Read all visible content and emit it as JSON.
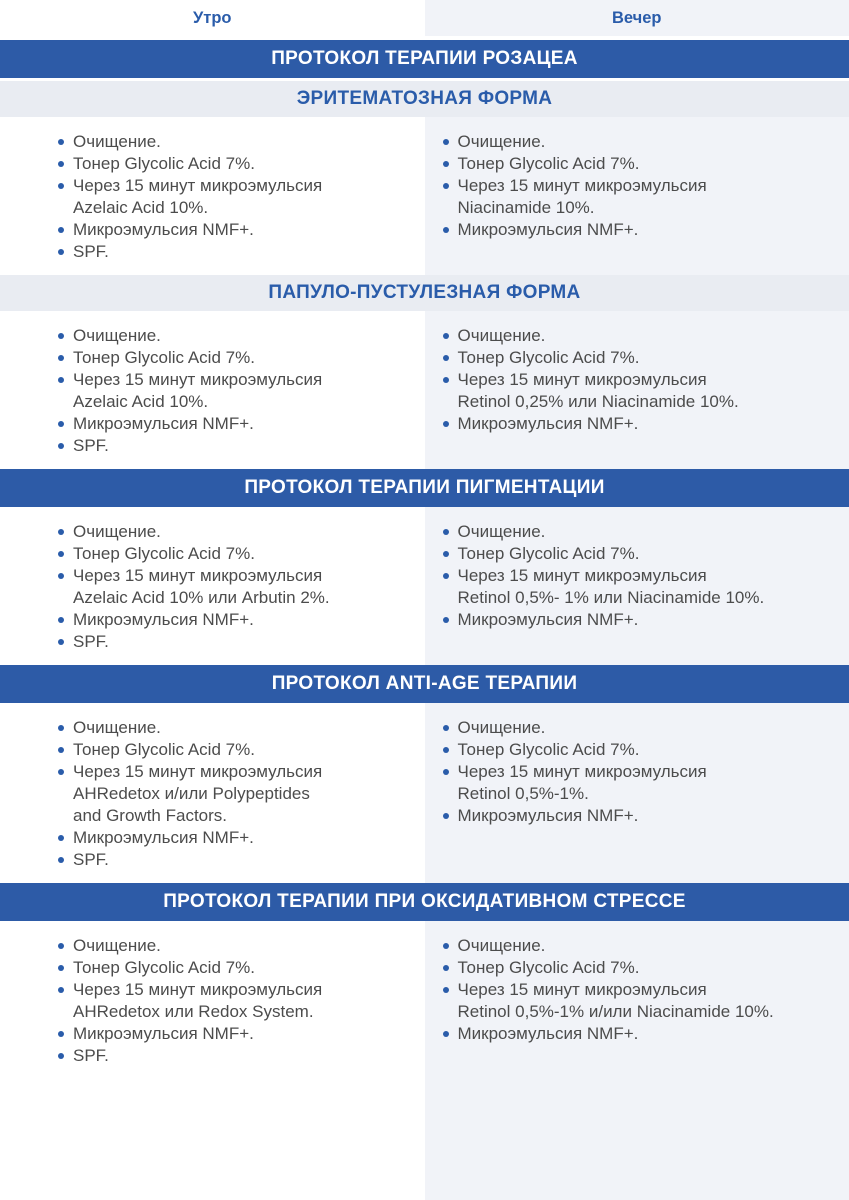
{
  "header": {
    "morning": "Утро",
    "evening": "Вечер"
  },
  "colors": {
    "banner_blue": "#2d5ba7",
    "accent_blue": "#2a5caa",
    "light_banner_bg": "#e9ecf2",
    "evening_column_bg": "#f1f3f8",
    "body_text": "#4c4c4c"
  },
  "blocks": [
    {
      "kind": "banner-dark",
      "text": "ПРОТОКОЛ ТЕРАПИИ РОЗАЦЕА"
    },
    {
      "kind": "banner-light",
      "text": "ЭРИТЕМАТОЗНАЯ ФОРМА"
    },
    {
      "kind": "lists",
      "morning": [
        "Очищение.",
        "Тонер Glycolic Acid 7%.",
        "Через 15 минут микроэмульсия\nAzelaic Acid 10%.",
        "Микроэмульсия NMF+.",
        "SPF."
      ],
      "evening": [
        "Очищение.",
        "Тонер Glycolic Acid 7%.",
        "Через 15 минут микроэмульсия\nNiacinamide 10%.",
        "Микроэмульсия NMF+."
      ]
    },
    {
      "kind": "banner-light",
      "text": "ПАПУЛО-ПУСТУЛЕЗНАЯ ФОРМА"
    },
    {
      "kind": "lists",
      "morning": [
        "Очищение.",
        "Тонер Glycolic Acid 7%.",
        "Через 15 минут микроэмульсия\nAzelaic Acid 10%.",
        "Микроэмульсия NMF+.",
        "SPF."
      ],
      "evening": [
        "Очищение.",
        "Тонер Glycolic Acid 7%.",
        "Через 15 минут микроэмульсия\nRetinol 0,25% или Niacinamide 10%.",
        "Микроэмульсия NMF+."
      ]
    },
    {
      "kind": "banner-dark",
      "text": "ПРОТОКОЛ ТЕРАПИИ ПИГМЕНТАЦИИ"
    },
    {
      "kind": "lists",
      "morning": [
        "Очищение.",
        "Тонер Glycolic Acid 7%.",
        "Через 15 минут микроэмульсия\nAzelaic Acid 10% или Arbutin 2%.",
        "Микроэмульсия NMF+.",
        "SPF."
      ],
      "evening": [
        "Очищение.",
        "Тонер Glycolic Acid 7%.",
        "Через 15 минут микроэмульсия\nRetinol 0,5%- 1% или Niacinamide 10%.",
        "Микроэмульсия NMF+."
      ]
    },
    {
      "kind": "banner-dark",
      "text": "ПРОТОКОЛ ANTI-AGE ТЕРАПИИ"
    },
    {
      "kind": "lists",
      "morning": [
        "Очищение.",
        "Тонер Glycolic Acid 7%.",
        "Через 15 минут микроэмульсия\nAHRedetox и/или Polypeptides\nand Growth Factors.",
        "Микроэмульсия NMF+.",
        "SPF."
      ],
      "evening": [
        "Очищение.",
        "Тонер Glycolic Acid 7%.",
        "Через 15 минут микроэмульсия\nRetinol 0,5%-1%.",
        "Микроэмульсия NMF+."
      ]
    },
    {
      "kind": "banner-dark",
      "text": "ПРОТОКОЛ ТЕРАПИИ ПРИ ОКСИДАТИВНОМ СТРЕССЕ"
    },
    {
      "kind": "lists",
      "morning": [
        "Очищение.",
        "Тонер Glycolic Acid 7%.",
        "Через 15 минут микроэмульсия\nAHRedetox или Redox System.",
        "Микроэмульсия NMF+.",
        "SPF."
      ],
      "evening": [
        "Очищение.",
        "Тонер Glycolic Acid 7%.",
        "Через 15 минут микроэмульсия\nRetinol 0,5%-1% и/или Niacinamide 10%.",
        "Микроэмульсия NMF+."
      ]
    }
  ]
}
